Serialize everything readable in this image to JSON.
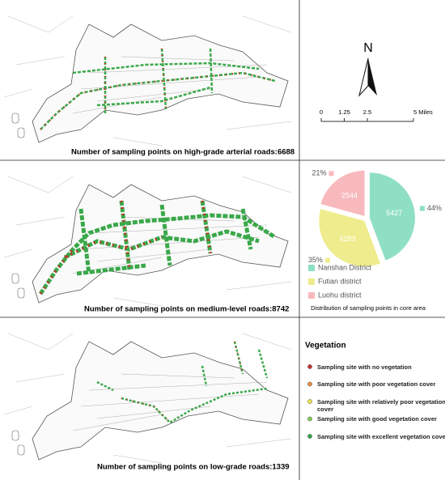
{
  "maps": [
    {
      "caption": "Number of sampling points on high-grade arterial roads:6688"
    },
    {
      "caption": "Number of sampling points on medium-level roads:8742"
    },
    {
      "caption": "Number of sampling points on low-grade roads:1339"
    }
  ],
  "north_arrow": {
    "label": "N"
  },
  "scale_bar": {
    "ticks": [
      0,
      1.25,
      2.5,
      {
        "value": 5,
        "label": "5 Miles"
      }
    ]
  },
  "chart_data": {
    "type": "pie",
    "caption": "Distribution of sampling points in core area",
    "categories": [
      "Nanshan District",
      "Futian district",
      "Luohu district"
    ],
    "values": [
      5427,
      4283,
      2544
    ],
    "percent_labels": [
      "44%",
      "35%",
      "21%"
    ],
    "colors": [
      "#8fdfc4",
      "#eeec8c",
      "#f8b9bd"
    ]
  },
  "legend": {
    "title": "Vegetation",
    "items": [
      {
        "label": "Sampling site with no vegetation",
        "color": "#c8312b"
      },
      {
        "label": "Sampling site with poor vegetation cover",
        "color": "#e88a3c"
      },
      {
        "label": "Sampling site with relatively poor vegetation cover",
        "color": "#ece44c"
      },
      {
        "label": "Sampling site with good vegetation cover",
        "color": "#7fce4d"
      },
      {
        "label": "Sampling site with excellent vegetation cover",
        "color": "#2ea64b"
      }
    ]
  }
}
